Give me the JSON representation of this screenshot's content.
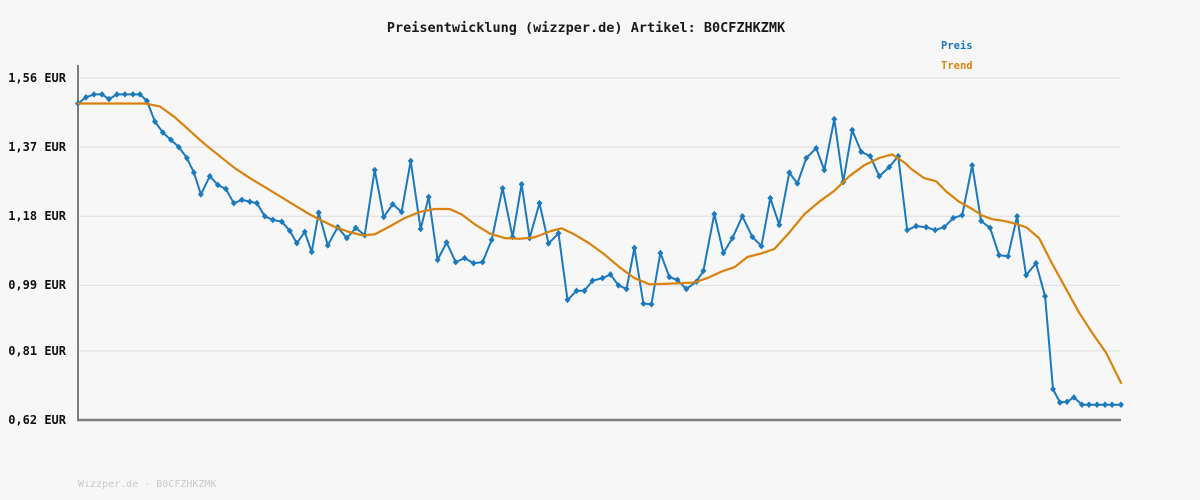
{
  "title": "Preisentwicklung (wizzper.de) Artikel: B0CFZHKZMK",
  "watermark": "Wizzper.de - B0CFZHKZMK",
  "legend": {
    "preis": {
      "label": "Preis",
      "color": "#1b79bd"
    },
    "trend": {
      "label": "Trend",
      "color": "#d9820e"
    }
  },
  "colors": {
    "background": "#f7f7f7",
    "grid": "#e4e4e6",
    "axis": "#7d7d7d",
    "price_line": "#1b79bd",
    "trend_line": "#d9820e",
    "title_text": "#1a1a1a",
    "tick_text": "#111111",
    "watermark_text": "#c9c9c9"
  },
  "chart_data": {
    "type": "line",
    "title": "Preisentwicklung (wizzper.de) Artikel: B0CFZHKZMK",
    "xlabel": "",
    "ylabel": "",
    "currency": "EUR",
    "ylim": [
      0.62,
      1.56
    ],
    "grid": true,
    "legend_position": "top-right",
    "x_tick_labels": [],
    "y_ticks": [
      {
        "label": "1,56 EUR",
        "value": 1.56
      },
      {
        "label": "1,37 EUR",
        "value": 1.37
      },
      {
        "label": "1,18 EUR",
        "value": 1.18
      },
      {
        "label": "0,99 EUR",
        "value": 0.99
      },
      {
        "label": "0,81 EUR",
        "value": 0.81
      },
      {
        "label": "0,62 EUR",
        "value": 0.62
      }
    ],
    "series": [
      {
        "name": "Preis",
        "color": "#1b79bd",
        "marker": "diamond",
        "width": 2,
        "points": [
          [
            0.0,
            1.49
          ],
          [
            0.0077,
            1.507
          ],
          [
            0.0153,
            1.515
          ],
          [
            0.023,
            1.515
          ],
          [
            0.0297,
            1.502
          ],
          [
            0.0374,
            1.515
          ],
          [
            0.045,
            1.515
          ],
          [
            0.0527,
            1.515
          ],
          [
            0.0594,
            1.515
          ],
          [
            0.0661,
            1.497
          ],
          [
            0.0738,
            1.44
          ],
          [
            0.0814,
            1.41
          ],
          [
            0.0891,
            1.39
          ],
          [
            0.0967,
            1.37
          ],
          [
            0.1044,
            1.34
          ],
          [
            0.1111,
            1.3
          ],
          [
            0.1178,
            1.24
          ],
          [
            0.1264,
            1.29
          ],
          [
            0.1341,
            1.266
          ],
          [
            0.1418,
            1.255
          ],
          [
            0.1494,
            1.216
          ],
          [
            0.1571,
            1.225
          ],
          [
            0.1648,
            1.22
          ],
          [
            0.1715,
            1.216
          ],
          [
            0.1791,
            1.18
          ],
          [
            0.1868,
            1.17
          ],
          [
            0.1954,
            1.165
          ],
          [
            0.2031,
            1.14
          ],
          [
            0.2098,
            1.106
          ],
          [
            0.2174,
            1.137
          ],
          [
            0.2241,
            1.082
          ],
          [
            0.2308,
            1.19
          ],
          [
            0.2395,
            1.1
          ],
          [
            0.249,
            1.15
          ],
          [
            0.2577,
            1.12
          ],
          [
            0.2663,
            1.148
          ],
          [
            0.2749,
            1.128
          ],
          [
            0.2845,
            1.307
          ],
          [
            0.2931,
            1.178
          ],
          [
            0.3017,
            1.213
          ],
          [
            0.3103,
            1.192
          ],
          [
            0.319,
            1.332
          ],
          [
            0.3285,
            1.145
          ],
          [
            0.3362,
            1.233
          ],
          [
            0.3448,
            1.06
          ],
          [
            0.3534,
            1.108
          ],
          [
            0.3621,
            1.054
          ],
          [
            0.3707,
            1.065
          ],
          [
            0.3793,
            1.051
          ],
          [
            0.3879,
            1.054
          ],
          [
            0.3966,
            1.115
          ],
          [
            0.4071,
            1.257
          ],
          [
            0.4167,
            1.123
          ],
          [
            0.4253,
            1.268
          ],
          [
            0.433,
            1.12
          ],
          [
            0.4425,
            1.216
          ],
          [
            0.4511,
            1.105
          ],
          [
            0.4607,
            1.133
          ],
          [
            0.4693,
            0.95
          ],
          [
            0.478,
            0.975
          ],
          [
            0.4856,
            0.975
          ],
          [
            0.4933,
            1.003
          ],
          [
            0.5029,
            1.01
          ],
          [
            0.5105,
            1.02
          ],
          [
            0.5182,
            0.99
          ],
          [
            0.5259,
            0.98
          ],
          [
            0.5335,
            1.093
          ],
          [
            0.5421,
            0.94
          ],
          [
            0.5498,
            0.938
          ],
          [
            0.5584,
            1.079
          ],
          [
            0.567,
            1.013
          ],
          [
            0.5747,
            1.005
          ],
          [
            0.5833,
            0.98
          ],
          [
            0.5929,
            1.0
          ],
          [
            0.5996,
            1.03
          ],
          [
            0.6101,
            1.186
          ],
          [
            0.6188,
            1.079
          ],
          [
            0.6274,
            1.12
          ],
          [
            0.637,
            1.18
          ],
          [
            0.6466,
            1.123
          ],
          [
            0.6552,
            1.098
          ],
          [
            0.6638,
            1.23
          ],
          [
            0.6724,
            1.156
          ],
          [
            0.682,
            1.3
          ],
          [
            0.6897,
            1.27
          ],
          [
            0.6983,
            1.34
          ],
          [
            0.7078,
            1.367
          ],
          [
            0.7155,
            1.307
          ],
          [
            0.7251,
            1.447
          ],
          [
            0.7337,
            1.274
          ],
          [
            0.7423,
            1.417
          ],
          [
            0.7509,
            1.357
          ],
          [
            0.7596,
            1.345
          ],
          [
            0.7682,
            1.29
          ],
          [
            0.7778,
            1.315
          ],
          [
            0.7864,
            1.345
          ],
          [
            0.795,
            1.142
          ],
          [
            0.8036,
            1.153
          ],
          [
            0.8132,
            1.15
          ],
          [
            0.8218,
            1.142
          ],
          [
            0.8305,
            1.15
          ],
          [
            0.8391,
            1.175
          ],
          [
            0.8477,
            1.183
          ],
          [
            0.8573,
            1.32
          ],
          [
            0.8659,
            1.167
          ],
          [
            0.8745,
            1.148
          ],
          [
            0.8831,
            1.073
          ],
          [
            0.8917,
            1.07
          ],
          [
            0.9004,
            1.18
          ],
          [
            0.909,
            1.018
          ],
          [
            0.9185,
            1.051
          ],
          [
            0.9272,
            0.96
          ],
          [
            0.9348,
            0.705
          ],
          [
            0.9415,
            0.668
          ],
          [
            0.9482,
            0.67
          ],
          [
            0.9549,
            0.682
          ],
          [
            0.9626,
            0.662
          ],
          [
            0.9693,
            0.662
          ],
          [
            0.977,
            0.662
          ],
          [
            0.9847,
            0.662
          ],
          [
            0.9914,
            0.662
          ],
          [
            1.0,
            0.662
          ]
        ]
      },
      {
        "name": "Trend",
        "color": "#d9820e",
        "marker": "none",
        "width": 2.2,
        "points": [
          [
            0.0,
            1.49
          ],
          [
            0.0402,
            1.49
          ],
          [
            0.0642,
            1.49
          ],
          [
            0.0785,
            1.482
          ],
          [
            0.0929,
            1.452
          ],
          [
            0.1073,
            1.415
          ],
          [
            0.1216,
            1.378
          ],
          [
            0.136,
            1.345
          ],
          [
            0.1504,
            1.312
          ],
          [
            0.1648,
            1.285
          ],
          [
            0.1791,
            1.26
          ],
          [
            0.1935,
            1.235
          ],
          [
            0.2078,
            1.21
          ],
          [
            0.2222,
            1.185
          ],
          [
            0.2337,
            1.168
          ],
          [
            0.2452,
            1.152
          ],
          [
            0.2586,
            1.138
          ],
          [
            0.272,
            1.128
          ],
          [
            0.2845,
            1.13
          ],
          [
            0.2989,
            1.152
          ],
          [
            0.3132,
            1.175
          ],
          [
            0.3276,
            1.192
          ],
          [
            0.342,
            1.2
          ],
          [
            0.3563,
            1.2
          ],
          [
            0.3678,
            1.185
          ],
          [
            0.3803,
            1.158
          ],
          [
            0.3946,
            1.133
          ],
          [
            0.409,
            1.12
          ],
          [
            0.4234,
            1.118
          ],
          [
            0.4377,
            1.122
          ],
          [
            0.4521,
            1.138
          ],
          [
            0.4636,
            1.147
          ],
          [
            0.476,
            1.13
          ],
          [
            0.4904,
            1.105
          ],
          [
            0.5048,
            1.075
          ],
          [
            0.5192,
            1.04
          ],
          [
            0.5335,
            1.01
          ],
          [
            0.5479,
            0.993
          ],
          [
            0.5623,
            0.994
          ],
          [
            0.5766,
            0.996
          ],
          [
            0.591,
            0.998
          ],
          [
            0.6034,
            1.01
          ],
          [
            0.6169,
            1.028
          ],
          [
            0.6293,
            1.04
          ],
          [
            0.6418,
            1.068
          ],
          [
            0.6552,
            1.078
          ],
          [
            0.6676,
            1.09
          ],
          [
            0.682,
            1.135
          ],
          [
            0.6963,
            1.185
          ],
          [
            0.7107,
            1.22
          ],
          [
            0.7251,
            1.25
          ],
          [
            0.7395,
            1.29
          ],
          [
            0.7538,
            1.32
          ],
          [
            0.7682,
            1.34
          ],
          [
            0.7807,
            1.35
          ],
          [
            0.7922,
            1.328
          ],
          [
            0.7989,
            1.31
          ],
          [
            0.8113,
            1.285
          ],
          [
            0.8228,
            1.276
          ],
          [
            0.8324,
            1.248
          ],
          [
            0.8448,
            1.22
          ],
          [
            0.8573,
            1.2
          ],
          [
            0.8669,
            1.182
          ],
          [
            0.8764,
            1.172
          ],
          [
            0.886,
            1.168
          ],
          [
            0.8956,
            1.162
          ],
          [
            0.909,
            1.15
          ],
          [
            0.9215,
            1.12
          ],
          [
            0.9339,
            1.05
          ],
          [
            0.9483,
            0.975
          ],
          [
            0.9598,
            0.915
          ],
          [
            0.9723,
            0.86
          ],
          [
            0.9857,
            0.805
          ],
          [
            1.0,
            0.722
          ]
        ]
      }
    ]
  }
}
